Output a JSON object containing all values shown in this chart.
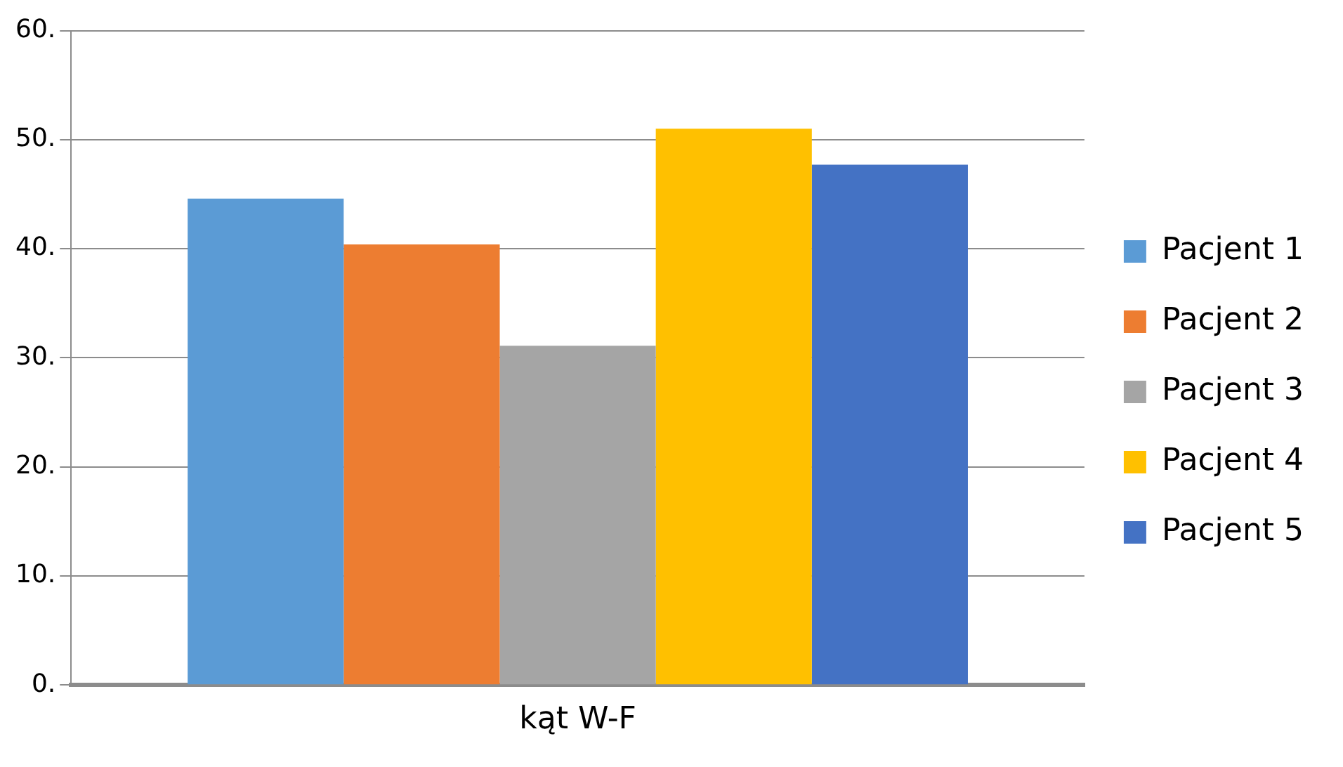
{
  "chart_data": {
    "type": "bar",
    "categories": [
      "kąt W-F"
    ],
    "series": [
      {
        "name": "Pacjent 1",
        "color": "#5b9bd5",
        "values": [
          44.6
        ]
      },
      {
        "name": "Pacjent 2",
        "color": "#ed7d31",
        "values": [
          40.4
        ]
      },
      {
        "name": "Pacjent 3",
        "color": "#a5a5a5",
        "values": [
          31.1
        ]
      },
      {
        "name": "Pacjent 4",
        "color": "#ffc000",
        "values": [
          51.0
        ]
      },
      {
        "name": "Pacjent 5",
        "color": "#4472c4",
        "values": [
          47.7
        ]
      }
    ],
    "ylim": [
      0,
      60
    ],
    "yticks": [
      {
        "value": 0,
        "label": "0."
      },
      {
        "value": 10,
        "label": "10."
      },
      {
        "value": 20,
        "label": "20."
      },
      {
        "value": 30,
        "label": "30."
      },
      {
        "value": 40,
        "label": "40."
      },
      {
        "value": 50,
        "label": "50."
      },
      {
        "value": 60,
        "label": "60."
      }
    ],
    "grid": "y",
    "legend": "right"
  }
}
